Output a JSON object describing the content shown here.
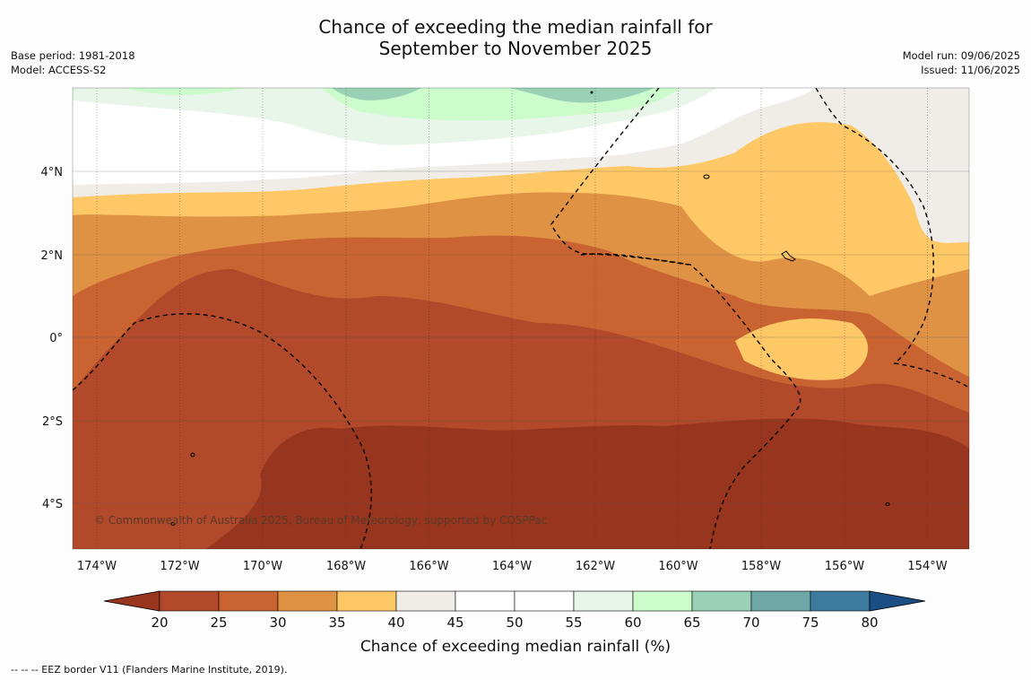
{
  "title": {
    "line1": "Chance of exceeding the median rainfall for",
    "line2": "September to November 2025"
  },
  "meta_left": {
    "base_period": "Base period: 1981-2018",
    "model": "Model: ACCESS-S2"
  },
  "meta_right": {
    "model_run": "Model run: 09/06/2025",
    "issued": "Issued: 11/06/2025"
  },
  "map": {
    "lon_labels": [
      "174°W",
      "172°W",
      "170°W",
      "168°W",
      "166°W",
      "164°W",
      "162°W",
      "160°W",
      "158°W",
      "156°W",
      "154°W"
    ],
    "lat_labels": [
      "4°N",
      "2°N",
      "0°",
      "2°S",
      "4°S"
    ],
    "copyright": "© Commonwealth of Australia 2025, Bureau of Meteorology, supported by COSPPac"
  },
  "colorbar": {
    "title": "Chance of exceeding median rainfall (%)",
    "ticks": [
      "20",
      "25",
      "30",
      "35",
      "40",
      "45",
      "50",
      "55",
      "60",
      "65",
      "70",
      "75",
      "80"
    ],
    "colors": [
      "#98351e",
      "#b1492a",
      "#c96432",
      "#e09244",
      "#fdc865",
      "#f0ede8",
      "#ffffff",
      "#ffffff",
      "#e8f5e9",
      "#ccfccc",
      "#9ad0b6",
      "#6ea7a8",
      "#3d7a9e",
      "#1a4e84"
    ]
  },
  "footnote": "--  --  -- EEZ border V11 (Flanders Marine Institute, 2019)."
}
